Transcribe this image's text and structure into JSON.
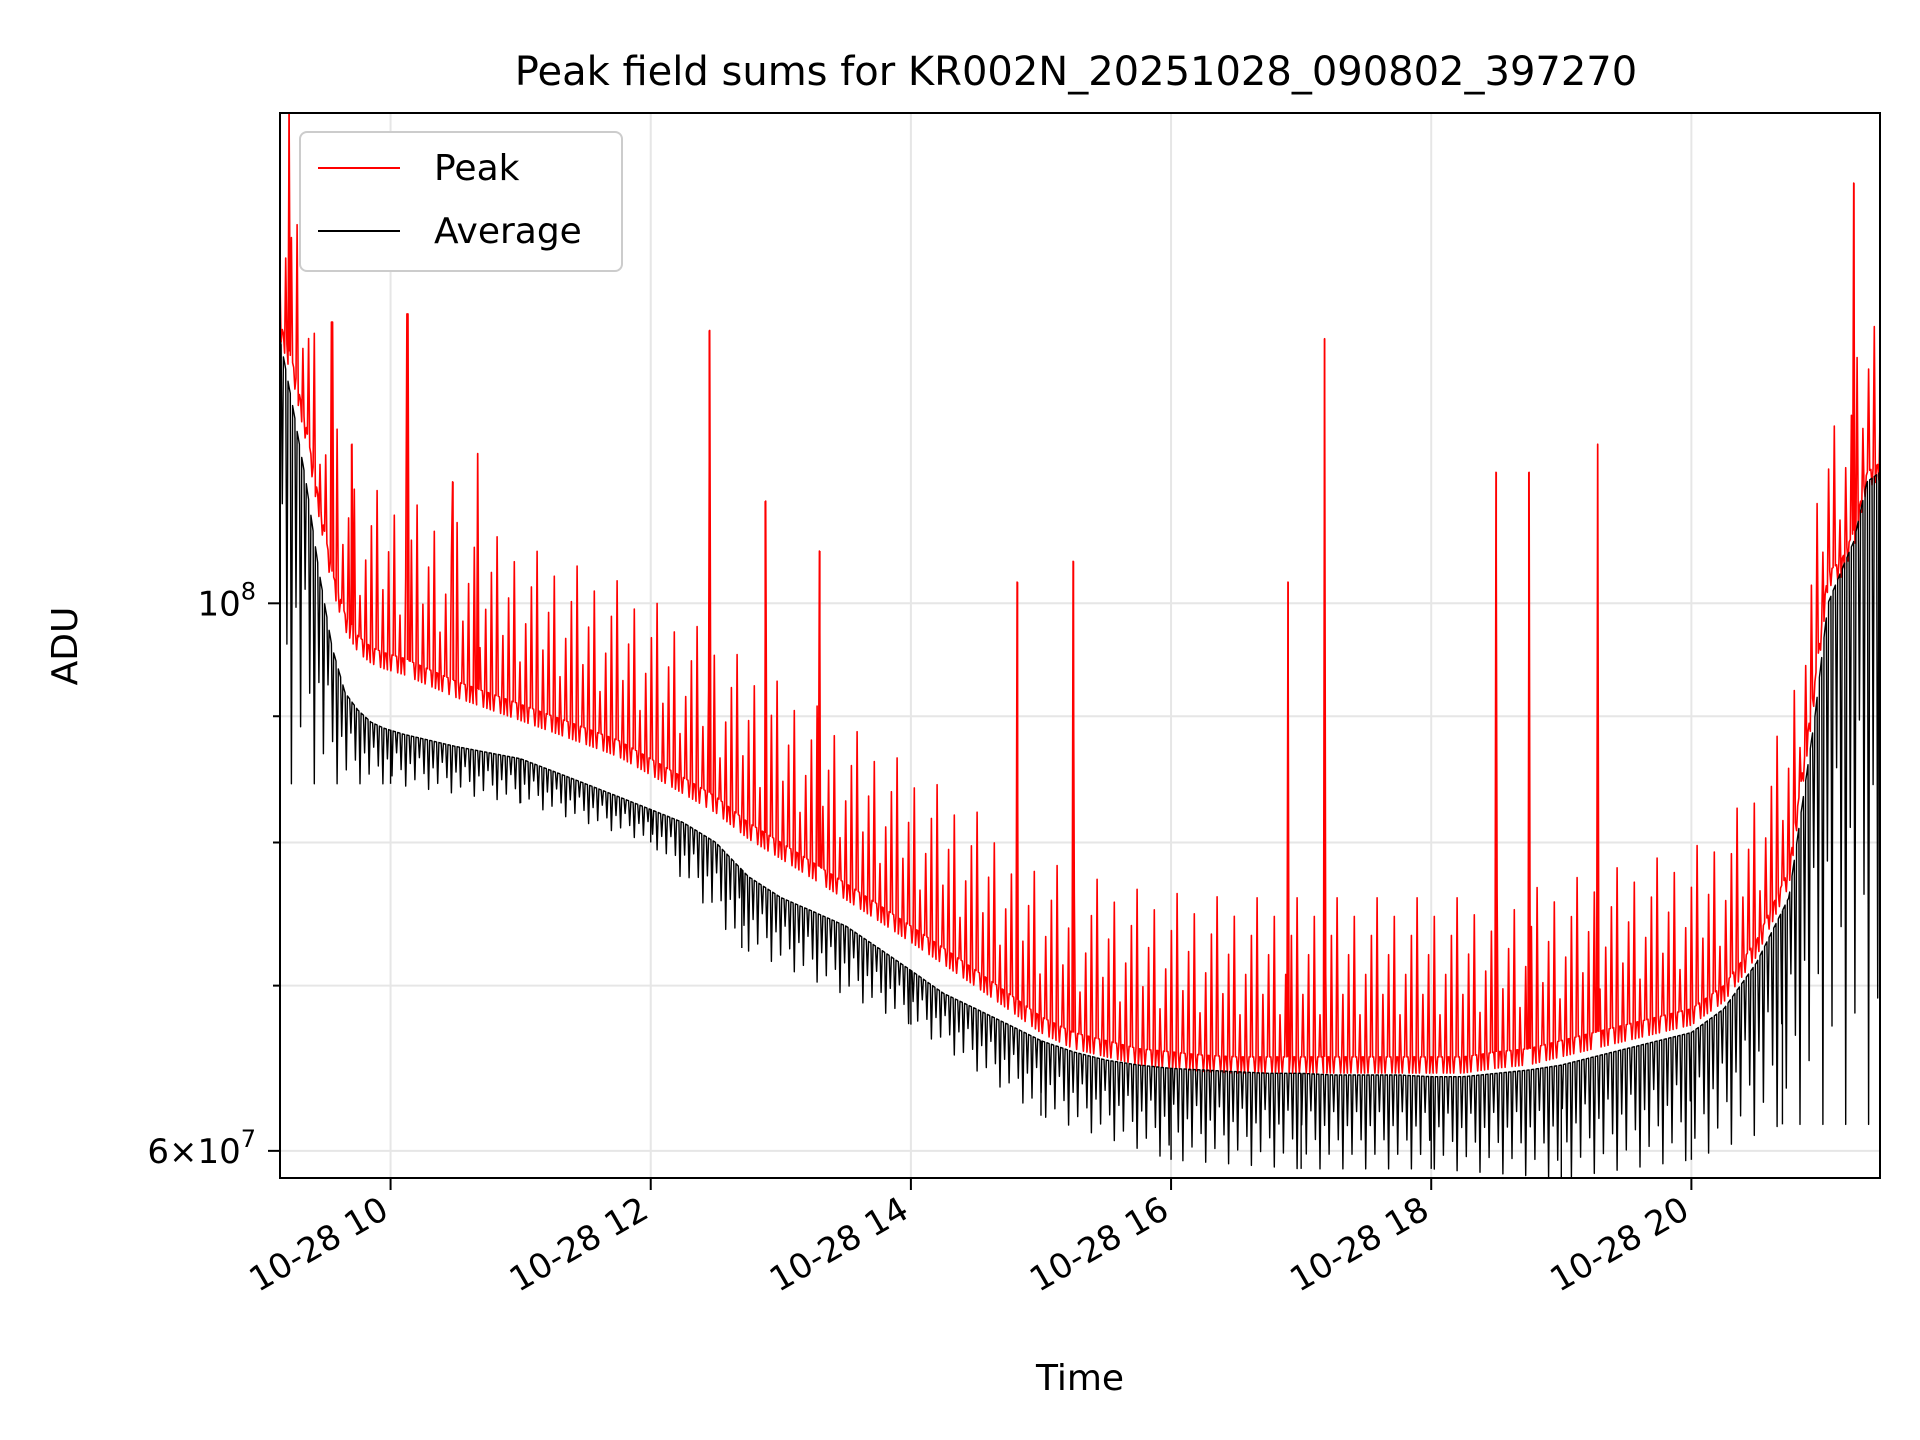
{
  "chart_data": {
    "type": "line",
    "title": "Peak field sums for KR002N_20251028_090802_397270",
    "xlabel": "Time",
    "ylabel": "ADU",
    "yscale": "log",
    "xlim": [
      9.15,
      21.45
    ],
    "ylim": [
      58500000,
      158000000
    ],
    "x_ticks": [
      {
        "value": 10,
        "label": "10-28 10"
      },
      {
        "value": 12,
        "label": "10-28 12"
      },
      {
        "value": 14,
        "label": "10-28 14"
      },
      {
        "value": 16,
        "label": "10-28 16"
      },
      {
        "value": 18,
        "label": "10-28 18"
      },
      {
        "value": 20,
        "label": "10-28 20"
      }
    ],
    "y_major_ticks": [
      {
        "value": 60000000,
        "mantissa": "6",
        "exponent": "7"
      },
      {
        "value": 100000000,
        "mantissa": "",
        "exponent": "8"
      }
    ],
    "y_minor_ticks": [
      70000000,
      80000000,
      90000000
    ],
    "grid": true,
    "legend_position": "top-left",
    "series": [
      {
        "name": "Peak",
        "color": "#ff0000",
        "x": [
          9.15,
          9.25,
          9.35,
          9.45,
          9.55,
          9.65,
          9.75,
          9.85,
          9.95,
          10.1,
          10.3,
          10.5,
          10.75,
          11.0,
          11.25,
          11.5,
          11.75,
          12.0,
          12.25,
          12.5,
          12.75,
          13.0,
          13.25,
          13.5,
          13.75,
          14.0,
          14.25,
          14.5,
          14.75,
          15.0,
          15.25,
          15.5,
          15.75,
          16.0,
          16.25,
          16.5,
          16.75,
          17.0,
          17.25,
          17.5,
          17.75,
          18.0,
          18.25,
          18.5,
          18.75,
          19.0,
          19.25,
          19.5,
          19.75,
          20.0,
          20.25,
          20.5,
          20.75,
          20.95,
          21.05,
          21.15,
          21.25,
          21.35,
          21.45
        ],
        "y": [
          130000000,
          125000000,
          118000000,
          110000000,
          103000000,
          99000000,
          97000000,
          96000000,
          95500000,
          95000000,
          94000000,
          93000000,
          92000000,
          91000000,
          90000000,
          89000000,
          88000000,
          86500000,
          85000000,
          83500000,
          81500000,
          80000000,
          78500000,
          77000000,
          75500000,
          74000000,
          72500000,
          71000000,
          69500000,
          68000000,
          67000000,
          66500000,
          66000000,
          65800000,
          65600000,
          65500000,
          65500000,
          65500000,
          65500000,
          65500000,
          65500000,
          65500000,
          65500000,
          65800000,
          66000000,
          66500000,
          67000000,
          67500000,
          68000000,
          68500000,
          70000000,
          73000000,
          78000000,
          93000000,
          103000000,
          104000000,
          107000000,
          113000000,
          114000000
        ],
        "spikes": [
          {
            "x": 9.22,
            "y": 158000000
          },
          {
            "x": 9.55,
            "y": 130000000
          },
          {
            "x": 9.7,
            "y": 116000000
          },
          {
            "x": 10.13,
            "y": 131000000
          },
          {
            "x": 10.48,
            "y": 112000000
          },
          {
            "x": 10.67,
            "y": 115000000
          },
          {
            "x": 12.45,
            "y": 129000000
          },
          {
            "x": 12.88,
            "y": 110000000
          },
          {
            "x": 13.3,
            "y": 105000000
          },
          {
            "x": 14.82,
            "y": 102000000
          },
          {
            "x": 15.25,
            "y": 104000000
          },
          {
            "x": 16.9,
            "y": 102000000
          },
          {
            "x": 17.18,
            "y": 128000000
          },
          {
            "x": 18.5,
            "y": 113000000
          },
          {
            "x": 18.75,
            "y": 113000000
          },
          {
            "x": 19.28,
            "y": 116000000
          },
          {
            "x": 21.25,
            "y": 148000000
          }
        ]
      },
      {
        "name": "Average",
        "color": "#000000",
        "x": [
          9.15,
          9.25,
          9.35,
          9.45,
          9.55,
          9.65,
          9.75,
          9.85,
          9.95,
          10.1,
          10.3,
          10.5,
          10.75,
          11.0,
          11.25,
          11.5,
          11.75,
          12.0,
          12.25,
          12.5,
          12.75,
          13.0,
          13.25,
          13.5,
          13.75,
          14.0,
          14.25,
          14.5,
          14.75,
          15.0,
          15.25,
          15.5,
          15.75,
          16.0,
          16.25,
          16.5,
          16.75,
          17.0,
          17.25,
          17.5,
          17.75,
          18.0,
          18.25,
          18.5,
          18.75,
          19.0,
          19.25,
          19.5,
          19.75,
          20.0,
          20.25,
          20.5,
          20.75,
          20.95,
          21.05,
          21.15,
          21.25,
          21.35,
          21.45
        ],
        "y": [
          128000000,
          120000000,
          112000000,
          103000000,
          96000000,
          92000000,
          90500000,
          89500000,
          89000000,
          88500000,
          88000000,
          87500000,
          87000000,
          86500000,
          85500000,
          84500000,
          83500000,
          82500000,
          81500000,
          80000000,
          77500000,
          76000000,
          75000000,
          74000000,
          72500000,
          71000000,
          69500000,
          68500000,
          67500000,
          66500000,
          65800000,
          65300000,
          65000000,
          64800000,
          64700000,
          64600000,
          64500000,
          64500000,
          64400000,
          64400000,
          64400000,
          64300000,
          64300000,
          64500000,
          64700000,
          65000000,
          65500000,
          66000000,
          66500000,
          67000000,
          68500000,
          71500000,
          76000000,
          90000000,
          100000000,
          103000000,
          106000000,
          112000000,
          113000000
        ],
        "lows": [
          {
            "x": 10.0,
            "y": 84500000
          },
          {
            "x": 11.0,
            "y": 83000000
          },
          {
            "x": 12.0,
            "y": 80000000
          },
          {
            "x": 12.7,
            "y": 72500000
          },
          {
            "x": 14.0,
            "y": 67500000
          },
          {
            "x": 15.0,
            "y": 62000000
          },
          {
            "x": 16.0,
            "y": 59500000
          },
          {
            "x": 17.0,
            "y": 59000000
          },
          {
            "x": 18.0,
            "y": 59000000
          },
          {
            "x": 19.0,
            "y": 58500000
          },
          {
            "x": 20.0,
            "y": 59500000
          },
          {
            "x": 20.7,
            "y": 61500000
          }
        ]
      }
    ]
  }
}
